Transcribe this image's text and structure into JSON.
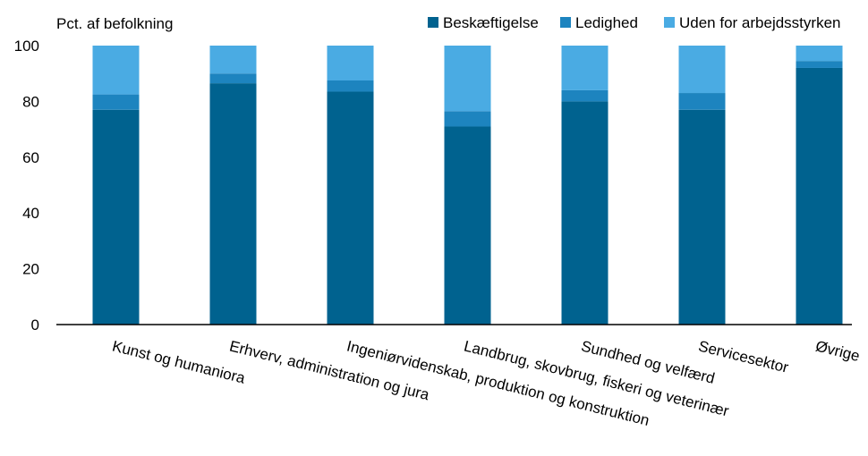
{
  "chart_data": {
    "type": "bar",
    "stacked": true,
    "ylabel": "Pct. af befolkning",
    "xlabel": "",
    "ylim": [
      0,
      100
    ],
    "yticks": [
      0,
      20,
      40,
      60,
      80,
      100
    ],
    "grid": false,
    "legend_position": "top-right",
    "categories": [
      "Kunst og humaniora",
      "Erhverv, administration og jura",
      "Ingeniørvidenskab, produktion og konstruktion",
      "Landbrug, skovbrug, fiskeri og veterinær",
      "Sundhed og velfærd",
      "Servicesektor",
      "Øvrige"
    ],
    "series": [
      {
        "name": "Beskæftigelse",
        "color": "#00628F",
        "values": [
          77,
          86.5,
          83.5,
          71,
          80,
          77,
          92
        ]
      },
      {
        "name": "Ledighed",
        "color": "#1D84BF",
        "values": [
          5.5,
          3.5,
          4,
          5.5,
          4,
          6,
          2.5
        ]
      },
      {
        "name": "Uden for arbejdsstyrken",
        "color": "#4AABE3",
        "values": [
          17.5,
          10,
          12.5,
          23.5,
          16,
          17,
          5.5
        ]
      }
    ]
  }
}
